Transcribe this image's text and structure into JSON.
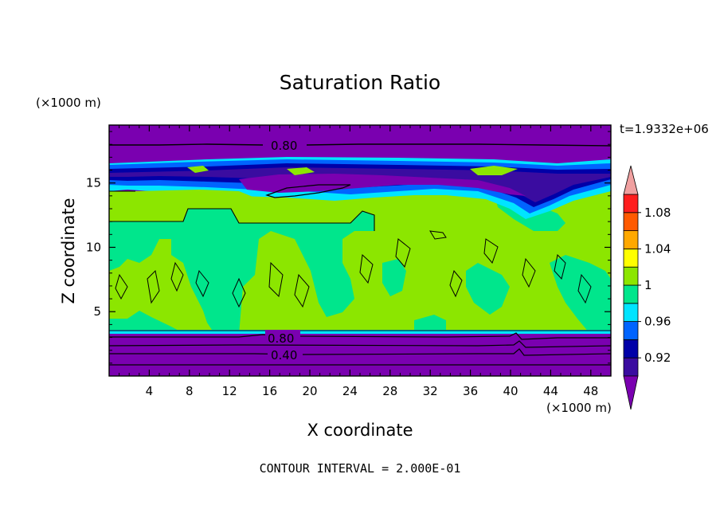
{
  "chart_data": {
    "type": "heatmap",
    "title": "Saturation Ratio",
    "xlabel": "X coordinate",
    "ylabel": "Z coordinate",
    "x_unit": "(×1000 m)",
    "y_unit": "(×1000 m)",
    "xlim": [
      0,
      50
    ],
    "ylim": [
      0,
      19.5
    ],
    "x_ticks": [
      "4",
      "8",
      "12",
      "16",
      "20",
      "24",
      "28",
      "32",
      "36",
      "40",
      "44",
      "48"
    ],
    "y_ticks": [
      "5",
      "10",
      "15"
    ],
    "time_label": "t=1.9332e+06",
    "footer": "CONTOUR INTERVAL = 2.000E-01",
    "contour_labels": [
      "0.80",
      "0.80",
      "0.40"
    ],
    "colorbar": {
      "levels": [
        0.9,
        0.92,
        0.94,
        0.96,
        0.98,
        1.0,
        1.02,
        1.04,
        1.06,
        1.08,
        1.1
      ],
      "tick_labels": [
        "0.92",
        "0.96",
        "1",
        "1.04",
        "1.08"
      ],
      "colors": [
        "#3a0ca0",
        "#0000a8",
        "#0064ff",
        "#00e4ff",
        "#00e68c",
        "#8ce600",
        "#ffff00",
        "#ffa800",
        "#ff5a00",
        "#ff1e1e"
      ],
      "under_color": "#7a00b0",
      "over_color": "#f0a0a0"
    },
    "regions": {
      "background": "0.80",
      "upper_dry_band": "0.80",
      "lower_dry_band": "0.40",
      "mid_layer": "0.98–1.02"
    }
  }
}
